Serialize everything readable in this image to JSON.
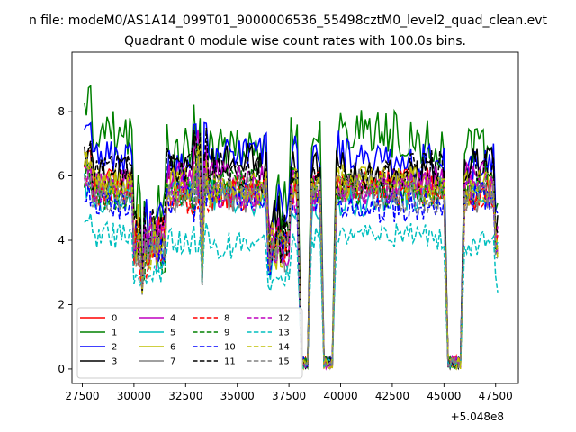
{
  "chart_data": {
    "type": "line",
    "suptitle": "n file: modeM0/AS1A14_099T01_9000006536_55498cztM0_level2_quad_clean.evt",
    "title": "Quadrant 0 module wise count rates with 100.0s bins.",
    "xlabel": "",
    "ylabel": "",
    "x_offset_label": "+5.048e8",
    "xlim": [
      27000,
      48600
    ],
    "ylim": [
      -0.45,
      9.85
    ],
    "xticks": [
      27500,
      30000,
      32500,
      35000,
      37500,
      40000,
      42500,
      45000,
      47500
    ],
    "xtick_labels": [
      "27500",
      "30000",
      "32500",
      "35000",
      "37500",
      "40000",
      "42500",
      "45000",
      "47500"
    ],
    "yticks": [
      0,
      2,
      4,
      6,
      8
    ],
    "ytick_labels": [
      "0",
      "2",
      "4",
      "6",
      "8"
    ],
    "x_start": 27600,
    "x_step": 100,
    "x_end": 47600,
    "series": [
      {
        "name": "0",
        "color": "#ff0000",
        "dash": "solid",
        "base": 5.6,
        "var": 0.35,
        "seed": 1
      },
      {
        "name": "1",
        "color": "#008000",
        "dash": "solid",
        "base": 7.1,
        "var": 0.55,
        "seed": 2
      },
      {
        "name": "2",
        "color": "#0000ff",
        "dash": "solid",
        "base": 6.6,
        "var": 0.45,
        "seed": 3
      },
      {
        "name": "3",
        "color": "#000000",
        "dash": "solid",
        "base": 6.3,
        "var": 0.4,
        "seed": 4
      },
      {
        "name": "4",
        "color": "#bf00bf",
        "dash": "solid",
        "base": 5.8,
        "var": 0.35,
        "seed": 5
      },
      {
        "name": "5",
        "color": "#00bfbf",
        "dash": "solid",
        "base": 5.3,
        "var": 0.35,
        "seed": 6
      },
      {
        "name": "6",
        "color": "#bfbf00",
        "dash": "solid",
        "base": 5.7,
        "var": 0.35,
        "seed": 7
      },
      {
        "name": "7",
        "color": "#808080",
        "dash": "solid",
        "base": 5.5,
        "var": 0.35,
        "seed": 8
      },
      {
        "name": "8",
        "color": "#ff0000",
        "dash": "dashed",
        "base": 5.5,
        "var": 0.35,
        "seed": 9
      },
      {
        "name": "9",
        "color": "#008000",
        "dash": "dashed",
        "base": 5.6,
        "var": 0.35,
        "seed": 10
      },
      {
        "name": "10",
        "color": "#0000ff",
        "dash": "dashed",
        "base": 5.2,
        "var": 0.35,
        "seed": 11
      },
      {
        "name": "11",
        "color": "#000000",
        "dash": "dashed",
        "base": 6.1,
        "var": 0.4,
        "seed": 12
      },
      {
        "name": "12",
        "color": "#bf00bf",
        "dash": "dashed",
        "base": 5.5,
        "var": 0.35,
        "seed": 13
      },
      {
        "name": "13",
        "color": "#00bfbf",
        "dash": "dashed",
        "base": 4.0,
        "var": 0.3,
        "seed": 14
      },
      {
        "name": "14",
        "color": "#bfbf00",
        "dash": "dashed",
        "base": 5.7,
        "var": 0.35,
        "seed": 15
      },
      {
        "name": "15",
        "color": "#808080",
        "dash": "dashed",
        "base": 5.5,
        "var": 0.35,
        "seed": 16
      }
    ],
    "features": {
      "dip_regions": [
        [
          38100,
          38400
        ],
        [
          39200,
          39600
        ],
        [
          45200,
          45800
        ]
      ],
      "low_regions": [
        [
          30000,
          31500
        ],
        [
          36500,
          37500
        ]
      ],
      "spike_regions": [
        [
          32900,
          33500
        ]
      ],
      "dip_min": 0.0
    },
    "legend": {
      "position": "lower-left",
      "columns": 4,
      "entries": [
        "0",
        "1",
        "2",
        "3",
        "4",
        "5",
        "6",
        "7",
        "8",
        "9",
        "10",
        "11",
        "12",
        "13",
        "14",
        "15"
      ]
    }
  }
}
